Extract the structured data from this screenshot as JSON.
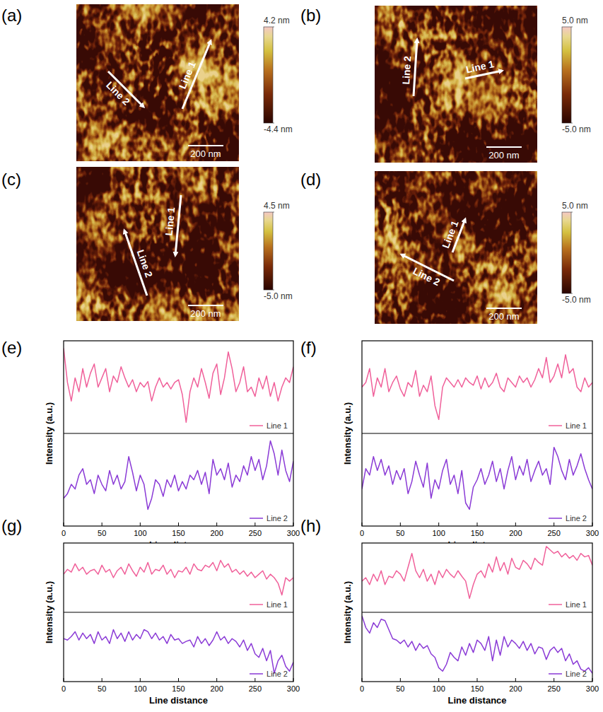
{
  "chart_data": [
    {
      "type": "image",
      "panel": "(a)",
      "colorbar_range": [
        -4.4,
        4.2
      ],
      "colorbar_ticks": [
        {
          "value": 4.2,
          "label": "4.2 nm"
        },
        {
          "value": -4.4,
          "label": "-4.4 nm"
        }
      ],
      "scale_bar": "200 nm",
      "annotations": [
        "Line 1",
        "Line 2"
      ]
    },
    {
      "type": "image",
      "panel": "(b)",
      "colorbar_range": [
        -5.0,
        5.0
      ],
      "colorbar_ticks": [
        {
          "value": 5.0,
          "label": "5.0 nm"
        },
        {
          "value": -5.0,
          "label": "-5.0 nm"
        }
      ],
      "scale_bar": "200 nm",
      "annotations": [
        "Line 1",
        "Line 2"
      ]
    },
    {
      "type": "image",
      "panel": "(c)",
      "colorbar_range": [
        -5.0,
        4.5
      ],
      "colorbar_ticks": [
        {
          "value": 4.5,
          "label": "4.5 nm"
        },
        {
          "value": -5.0,
          "label": "-5.0 nm"
        }
      ],
      "scale_bar": "200 nm",
      "annotations": [
        "Line 1",
        "Line 2"
      ]
    },
    {
      "type": "image",
      "panel": "(d)",
      "colorbar_range": [
        -5.0,
        5.0
      ],
      "colorbar_ticks": [
        {
          "value": 5.0,
          "label": "5.0 nm"
        },
        {
          "value": -5.0,
          "label": "-5.0 nm"
        }
      ],
      "scale_bar": "200 nm",
      "annotations": [
        "Line 1",
        "Line 2"
      ]
    },
    {
      "type": "line",
      "panel": "(e)",
      "x_label": "Line distance",
      "y_label": "Intensity (a.u.)",
      "xlim": [
        0,
        300
      ],
      "xticks": [
        0,
        50,
        100,
        150,
        200,
        250,
        300
      ],
      "ylim": [
        0,
        2
      ],
      "tick_labels": "x",
      "grid": false,
      "legend": "lower right",
      "x": [
        0,
        5,
        10,
        15,
        20,
        25,
        30,
        35,
        40,
        45,
        50,
        55,
        60,
        65,
        70,
        75,
        80,
        85,
        90,
        95,
        100,
        105,
        110,
        115,
        120,
        125,
        130,
        135,
        140,
        145,
        150,
        155,
        160,
        165,
        170,
        175,
        180,
        185,
        190,
        195,
        200,
        205,
        210,
        215,
        220,
        225,
        230,
        235,
        240,
        245,
        250,
        255,
        260,
        265,
        270,
        275,
        280,
        285,
        290,
        295,
        300
      ],
      "series": [
        {
          "name": "Line 1",
          "color": "#f0609a",
          "values": [
            1.92,
            1.55,
            1.35,
            1.6,
            1.45,
            1.7,
            1.5,
            1.65,
            1.75,
            1.5,
            1.6,
            1.7,
            1.45,
            1.62,
            1.55,
            1.72,
            1.6,
            1.5,
            1.58,
            1.45,
            1.55,
            1.5,
            1.56,
            1.35,
            1.5,
            1.6,
            1.5,
            1.55,
            1.48,
            1.55,
            1.58,
            1.42,
            1.12,
            1.45,
            1.6,
            1.5,
            1.7,
            1.55,
            1.38,
            1.65,
            1.75,
            1.42,
            1.6,
            1.88,
            1.7,
            1.45,
            1.55,
            1.72,
            1.45,
            1.5,
            1.4,
            1.6,
            1.48,
            1.62,
            1.4,
            1.55,
            1.35,
            1.5,
            1.6,
            1.55,
            1.72
          ]
        },
        {
          "name": "Line 2",
          "color": "#8a3ad6",
          "values": [
            0.3,
            0.35,
            0.45,
            0.4,
            0.55,
            0.62,
            0.45,
            0.5,
            0.35,
            0.55,
            0.45,
            0.38,
            0.6,
            0.45,
            0.55,
            0.4,
            0.48,
            0.75,
            0.58,
            0.38,
            0.55,
            0.45,
            0.18,
            0.3,
            0.5,
            0.45,
            0.32,
            0.5,
            0.42,
            0.55,
            0.38,
            0.48,
            0.4,
            0.55,
            0.5,
            0.6,
            0.45,
            0.58,
            0.35,
            0.72,
            0.55,
            0.62,
            0.5,
            0.68,
            0.42,
            0.55,
            0.48,
            0.65,
            0.55,
            0.75,
            0.6,
            0.72,
            0.5,
            0.65,
            0.92,
            0.78,
            0.55,
            0.82,
            0.6,
            0.48,
            0.7
          ]
        }
      ]
    },
    {
      "type": "line",
      "panel": "(f)",
      "x_label": "Line distance",
      "y_label": "Intensity (a.u.)",
      "xlim": [
        0,
        300
      ],
      "xticks": [
        0,
        50,
        100,
        150,
        200,
        250,
        300
      ],
      "ylim": [
        0,
        2
      ],
      "tick_labels": "x",
      "grid": false,
      "legend": "lower right",
      "x": [
        0,
        5,
        10,
        15,
        20,
        25,
        30,
        35,
        40,
        45,
        50,
        55,
        60,
        65,
        70,
        75,
        80,
        85,
        90,
        95,
        100,
        105,
        110,
        115,
        120,
        125,
        130,
        135,
        140,
        145,
        150,
        155,
        160,
        165,
        170,
        175,
        180,
        185,
        190,
        195,
        200,
        205,
        210,
        215,
        220,
        225,
        230,
        235,
        240,
        245,
        250,
        255,
        260,
        265,
        270,
        275,
        280,
        285,
        290,
        295,
        300
      ],
      "series": [
        {
          "name": "Line 1",
          "color": "#f0609a",
          "values": [
            1.5,
            1.55,
            1.7,
            1.4,
            1.6,
            1.5,
            1.7,
            1.45,
            1.55,
            1.62,
            1.48,
            1.4,
            1.55,
            1.5,
            1.68,
            1.4,
            1.52,
            1.45,
            1.62,
            1.3,
            1.15,
            1.5,
            1.6,
            1.55,
            1.5,
            1.58,
            1.5,
            1.6,
            1.55,
            1.52,
            1.62,
            1.48,
            1.6,
            1.5,
            1.55,
            1.65,
            1.5,
            1.45,
            1.6,
            1.55,
            1.5,
            1.62,
            1.55,
            1.6,
            1.5,
            1.58,
            1.7,
            1.6,
            1.82,
            1.55,
            1.62,
            1.75,
            1.6,
            1.85,
            1.65,
            1.7,
            1.5,
            1.45,
            1.6,
            1.5,
            1.55
          ]
        },
        {
          "name": "Line 2",
          "color": "#8a3ad6",
          "values": [
            0.4,
            0.62,
            0.55,
            0.75,
            0.6,
            0.72,
            0.55,
            0.65,
            0.45,
            0.6,
            0.5,
            0.62,
            0.35,
            0.48,
            0.7,
            0.55,
            0.42,
            0.68,
            0.3,
            0.5,
            0.4,
            0.6,
            0.72,
            0.45,
            0.55,
            0.35,
            0.6,
            0.25,
            0.18,
            0.42,
            0.5,
            0.62,
            0.45,
            0.55,
            0.7,
            0.48,
            0.62,
            0.4,
            0.6,
            0.75,
            0.5,
            0.65,
            0.55,
            0.72,
            0.48,
            0.6,
            0.7,
            0.55,
            0.62,
            0.45,
            0.85,
            0.75,
            0.6,
            0.5,
            0.72,
            0.55,
            0.65,
            0.78,
            0.62,
            0.5,
            0.4
          ]
        }
      ]
    },
    {
      "type": "line",
      "panel": "(g)",
      "x_label": "Line distance",
      "y_label": "Intensity (a.u.)",
      "xlim": [
        0,
        300
      ],
      "xticks": [
        0,
        50,
        100,
        150,
        200,
        250,
        300
      ],
      "ylim": [
        0,
        2
      ],
      "tick_labels": "x",
      "grid": false,
      "legend": "lower right",
      "x": [
        0,
        5,
        10,
        15,
        20,
        25,
        30,
        35,
        40,
        45,
        50,
        55,
        60,
        65,
        70,
        75,
        80,
        85,
        90,
        95,
        100,
        105,
        110,
        115,
        120,
        125,
        130,
        135,
        140,
        145,
        150,
        155,
        160,
        165,
        170,
        175,
        180,
        185,
        190,
        195,
        200,
        205,
        210,
        215,
        220,
        225,
        230,
        235,
        240,
        245,
        250,
        255,
        260,
        265,
        270,
        275,
        280,
        285,
        290,
        295,
        300
      ],
      "series": [
        {
          "name": "Line 1",
          "color": "#f0609a",
          "values": [
            1.55,
            1.62,
            1.58,
            1.7,
            1.6,
            1.65,
            1.55,
            1.6,
            1.62,
            1.55,
            1.68,
            1.58,
            1.62,
            1.5,
            1.6,
            1.65,
            1.55,
            1.7,
            1.6,
            1.52,
            1.65,
            1.58,
            1.72,
            1.55,
            1.62,
            1.6,
            1.68,
            1.55,
            1.62,
            1.5,
            1.6,
            1.58,
            1.65,
            1.55,
            1.7,
            1.62,
            1.6,
            1.68,
            1.65,
            1.72,
            1.6,
            1.75,
            1.65,
            1.7,
            1.58,
            1.62,
            1.55,
            1.6,
            1.52,
            1.58,
            1.5,
            1.55,
            1.6,
            1.48,
            1.55,
            1.5,
            1.42,
            1.25,
            1.5,
            1.45,
            1.5
          ]
        },
        {
          "name": "Line 2",
          "color": "#8a3ad6",
          "values": [
            0.62,
            0.6,
            0.65,
            0.72,
            0.6,
            0.7,
            0.62,
            0.68,
            0.55,
            0.72,
            0.6,
            0.65,
            0.55,
            0.75,
            0.62,
            0.7,
            0.58,
            0.72,
            0.6,
            0.68,
            0.62,
            0.75,
            0.72,
            0.62,
            0.7,
            0.6,
            0.65,
            0.55,
            0.68,
            0.6,
            0.62,
            0.55,
            0.58,
            0.6,
            0.5,
            0.65,
            0.55,
            0.62,
            0.52,
            0.6,
            0.72,
            0.6,
            0.65,
            0.55,
            0.62,
            0.58,
            0.5,
            0.6,
            0.45,
            0.55,
            0.4,
            0.35,
            0.48,
            0.3,
            0.45,
            0.12,
            0.3,
            0.38,
            0.22,
            0.15,
            0.28
          ]
        }
      ]
    },
    {
      "type": "line",
      "panel": "(h)",
      "x_label": "Line distance",
      "y_label": "Intensity (a.u.)",
      "xlim": [
        0,
        300
      ],
      "xticks": [
        0,
        50,
        100,
        150,
        200,
        250,
        300
      ],
      "ylim": [
        0,
        2
      ],
      "tick_labels": "x",
      "grid": false,
      "legend": "lower right",
      "x": [
        0,
        5,
        10,
        15,
        20,
        25,
        30,
        35,
        40,
        45,
        50,
        55,
        60,
        65,
        70,
        75,
        80,
        85,
        90,
        95,
        100,
        105,
        110,
        115,
        120,
        125,
        130,
        135,
        140,
        145,
        150,
        155,
        160,
        165,
        170,
        175,
        180,
        185,
        190,
        195,
        200,
        205,
        210,
        215,
        220,
        225,
        230,
        235,
        240,
        245,
        250,
        255,
        260,
        265,
        270,
        275,
        280,
        285,
        290,
        295,
        300
      ],
      "series": [
        {
          "name": "Line 1",
          "color": "#f0609a",
          "values": [
            1.45,
            1.5,
            1.4,
            1.55,
            1.45,
            1.6,
            1.4,
            1.52,
            1.5,
            1.6,
            1.55,
            1.45,
            1.65,
            1.85,
            1.6,
            1.5,
            1.62,
            1.45,
            1.55,
            1.4,
            1.6,
            1.5,
            1.62,
            1.55,
            1.5,
            1.6,
            1.52,
            1.45,
            1.2,
            1.4,
            1.55,
            1.6,
            1.5,
            1.7,
            1.58,
            1.8,
            1.6,
            1.72,
            1.55,
            1.78,
            1.65,
            1.62,
            1.75,
            1.7,
            1.62,
            1.78,
            1.72,
            1.68,
            1.95,
            1.9,
            1.85,
            1.88,
            1.8,
            1.85,
            1.78,
            1.82,
            1.75,
            1.85,
            1.8,
            1.82,
            1.68
          ]
        },
        {
          "name": "Line 2",
          "color": "#8a3ad6",
          "values": [
            0.95,
            0.78,
            0.7,
            0.85,
            0.78,
            0.9,
            0.88,
            0.75,
            0.62,
            0.6,
            0.55,
            0.6,
            0.5,
            0.58,
            0.45,
            0.55,
            0.48,
            0.52,
            0.4,
            0.35,
            0.2,
            0.15,
            0.25,
            0.42,
            0.35,
            0.3,
            0.5,
            0.38,
            0.55,
            0.42,
            0.6,
            0.55,
            0.45,
            0.65,
            0.3,
            0.6,
            0.38,
            0.65,
            0.5,
            0.6,
            0.55,
            0.48,
            0.58,
            0.45,
            0.55,
            0.4,
            0.5,
            0.48,
            0.32,
            0.45,
            0.5,
            0.42,
            0.48,
            0.3,
            0.4,
            0.25,
            0.3,
            0.18,
            0.15,
            0.2,
            0.12
          ]
        }
      ]
    }
  ]
}
